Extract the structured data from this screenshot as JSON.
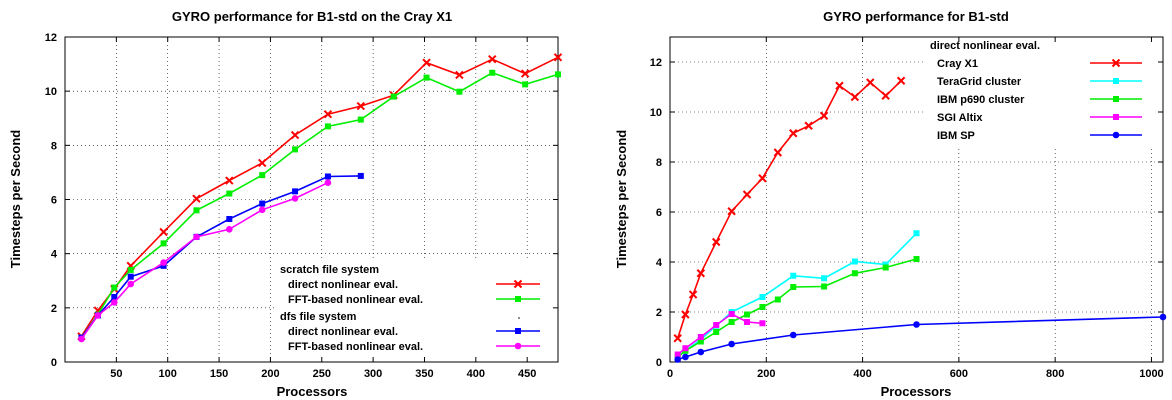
{
  "chart_data": [
    {
      "type": "line",
      "title": "GYRO performance for B1-std on the Cray X1",
      "xlabel": "Processors",
      "ylabel": "Timesteps per Second",
      "xlim": [
        0,
        480
      ],
      "ylim": [
        0,
        12
      ],
      "xticks": [
        50,
        100,
        150,
        200,
        250,
        300,
        350,
        400,
        450
      ],
      "yticks": [
        0,
        2,
        4,
        6,
        8,
        10,
        12
      ],
      "grid": true,
      "legend_position": "bottom-right",
      "legend_headers": [
        {
          "label": "scratch file system",
          "before_series": 0
        },
        {
          "label": "dfs file system",
          "before_series": 2
        }
      ],
      "series": [
        {
          "name": "direct nonlinear eval.",
          "color": "#ff0000",
          "marker": "x",
          "x": [
            16,
            32,
            48,
            64,
            96,
            128,
            160,
            192,
            224,
            256,
            288,
            320,
            352,
            384,
            416,
            448,
            480
          ],
          "y": [
            0.95,
            1.9,
            2.7,
            3.55,
            4.8,
            6.03,
            6.7,
            7.35,
            8.38,
            9.15,
            9.45,
            9.85,
            11.05,
            10.6,
            11.18,
            10.65,
            11.25
          ]
        },
        {
          "name": "FFT-based nonlinear eval.",
          "color": "#00ee00",
          "marker": "square",
          "x": [
            16,
            32,
            48,
            64,
            96,
            128,
            160,
            192,
            224,
            256,
            288,
            320,
            352,
            384,
            416,
            448,
            480
          ],
          "y": [
            0.9,
            1.75,
            2.75,
            3.4,
            4.38,
            5.6,
            6.22,
            6.9,
            7.85,
            8.7,
            8.95,
            9.8,
            10.5,
            9.98,
            10.68,
            10.25,
            10.62
          ]
        },
        {
          "name": "direct nonlinear eval.",
          "color": "#0000ff",
          "marker": "square",
          "x": [
            16,
            32,
            48,
            64,
            96,
            128,
            160,
            192,
            224,
            256,
            288
          ],
          "y": [
            0.9,
            1.72,
            2.4,
            3.15,
            3.55,
            4.62,
            5.28,
            5.85,
            6.3,
            6.85,
            6.87
          ]
        },
        {
          "name": "FFT-based nonlinear eval.",
          "color": "#ff00ff",
          "marker": "circle",
          "x": [
            16,
            32,
            48,
            64,
            96,
            128,
            160,
            192,
            224,
            256
          ],
          "y": [
            0.85,
            1.72,
            2.2,
            2.88,
            3.67,
            4.62,
            4.9,
            5.62,
            6.04,
            6.62
          ]
        }
      ]
    },
    {
      "type": "line",
      "title": "GYRO performance for B1-std",
      "xlabel": "Processors",
      "ylabel": "Timesteps per Second",
      "xlim": [
        0,
        1024
      ],
      "ylim": [
        0,
        13
      ],
      "xticks": [
        0,
        200,
        400,
        600,
        800,
        1000
      ],
      "yticks": [
        0,
        2,
        4,
        6,
        8,
        10,
        12
      ],
      "grid": true,
      "legend_position": "top-right",
      "legend_title": "direct nonlinear eval.",
      "series": [
        {
          "name": "Cray X1",
          "color": "#ff0000",
          "marker": "x",
          "x": [
            16,
            32,
            48,
            64,
            96,
            128,
            160,
            192,
            224,
            256,
            288,
            320,
            352,
            384,
            416,
            448,
            480
          ],
          "y": [
            0.95,
            1.9,
            2.7,
            3.55,
            4.8,
            6.03,
            6.7,
            7.35,
            8.38,
            9.15,
            9.45,
            9.85,
            11.05,
            10.6,
            11.18,
            10.65,
            11.25
          ]
        },
        {
          "name": "TeraGrid cluster",
          "color": "#00ffff",
          "marker": "square",
          "x": [
            16,
            32,
            64,
            96,
            128,
            192,
            256,
            320,
            384,
            448,
            512
          ],
          "y": [
            0.2,
            0.45,
            0.9,
            1.45,
            2.0,
            2.6,
            3.45,
            3.35,
            4.02,
            3.9,
            5.15
          ]
        },
        {
          "name": "IBM p690 cluster",
          "color": "#00ee00",
          "marker": "square",
          "x": [
            16,
            32,
            64,
            96,
            128,
            160,
            192,
            224,
            256,
            320,
            384,
            448,
            512
          ],
          "y": [
            0.2,
            0.45,
            0.82,
            1.2,
            1.6,
            1.9,
            2.2,
            2.5,
            3.0,
            3.02,
            3.55,
            3.78,
            4.12
          ]
        },
        {
          "name": "SGI Altix",
          "color": "#ff00ff",
          "marker": "square",
          "x": [
            16,
            32,
            64,
            96,
            128,
            160,
            192
          ],
          "y": [
            0.3,
            0.55,
            1.0,
            1.48,
            1.92,
            1.6,
            1.55
          ]
        },
        {
          "name": "IBM SP",
          "color": "#0000ff",
          "marker": "circle",
          "x": [
            16,
            32,
            64,
            128,
            256,
            512,
            1024
          ],
          "y": [
            0.1,
            0.2,
            0.4,
            0.72,
            1.08,
            1.5,
            1.8
          ]
        }
      ]
    }
  ]
}
